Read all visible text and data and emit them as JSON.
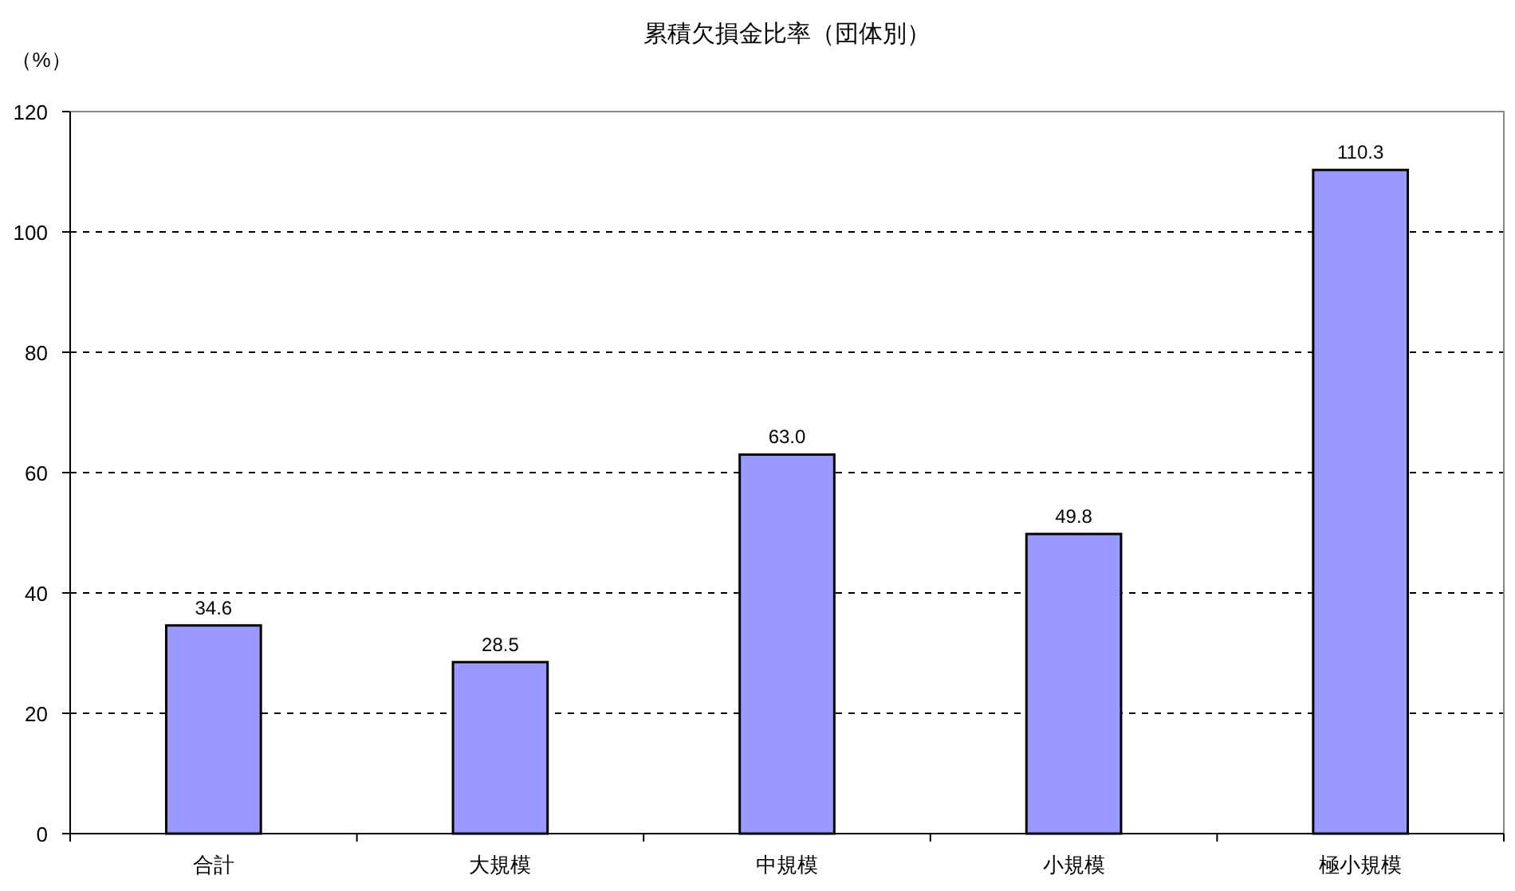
{
  "chart_data": {
    "type": "bar",
    "title": "累積欠損金比率（団体別）",
    "ylabel": "（%）",
    "categories": [
      "合計",
      "大規模",
      "中規模",
      "小規模",
      "極小規模"
    ],
    "values": [
      34.6,
      28.5,
      63.0,
      49.8,
      110.3
    ],
    "value_labels": [
      "34.6",
      "28.5",
      "63.0",
      "49.8",
      "110.3"
    ],
    "color": "#9999ff",
    "ylim": [
      0,
      120
    ],
    "yticks": [
      0,
      20,
      40,
      60,
      80,
      100,
      120
    ],
    "grid": "y"
  }
}
